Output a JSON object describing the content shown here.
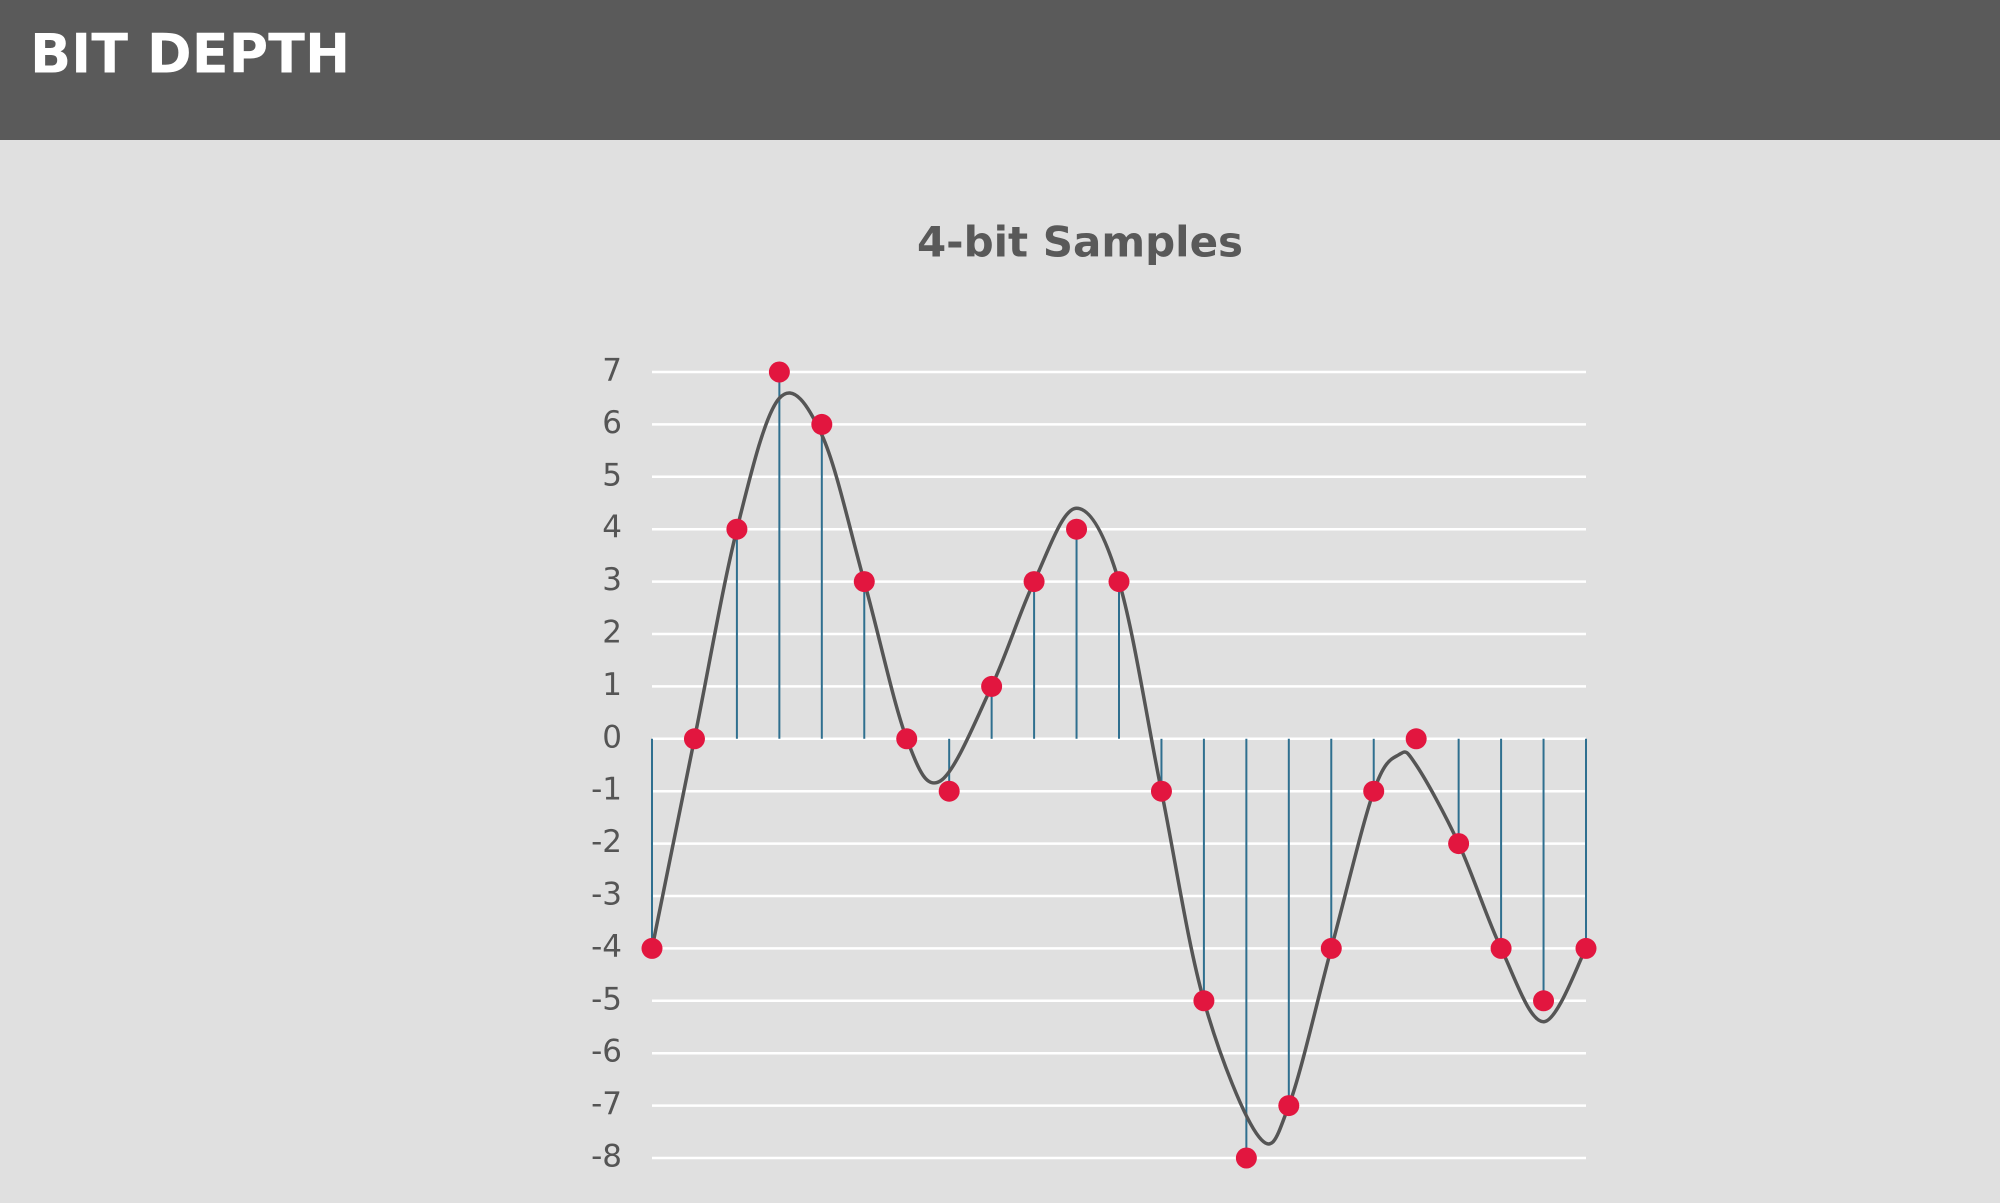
{
  "header": {
    "title": "BIT DEPTH"
  },
  "chart_data": {
    "type": "stem",
    "title": "4-bit Samples",
    "x": [
      0,
      1,
      2,
      3,
      4,
      5,
      6,
      7,
      8,
      9,
      10,
      11,
      12,
      13,
      14,
      15,
      16,
      17,
      18,
      19,
      20,
      21,
      22
    ],
    "values": [
      -4,
      0,
      4,
      7,
      6,
      3,
      0,
      -1,
      1,
      3,
      4,
      3,
      -1,
      -5,
      -8,
      -7,
      -4,
      -1,
      0,
      -2,
      -4,
      -5,
      -4
    ],
    "color": "#e2163f",
    "stem_color": "#2f6f8f",
    "analog_signal": {
      "x": [
        0,
        1,
        2,
        3,
        4,
        5,
        6,
        6.8,
        8,
        9,
        10,
        11,
        12,
        13,
        14.3,
        15,
        16,
        17,
        17.6,
        18,
        19,
        20,
        21,
        22
      ],
      "values": [
        -4,
        0,
        4,
        6.5,
        5.8,
        3,
        0,
        -0.8,
        1,
        3,
        4.4,
        3,
        -1,
        -5,
        -7.6,
        -7,
        -4,
        -1,
        -0.3,
        -0.5,
        -2,
        -4,
        -5.4,
        -4
      ],
      "color": "#555555"
    },
    "xlim": [
      0,
      22
    ],
    "ylim": [
      -8,
      7
    ],
    "yticks": [
      -8,
      -7,
      -6,
      -5,
      -4,
      -3,
      -2,
      -1,
      0,
      1,
      2,
      3,
      4,
      5,
      6,
      7
    ],
    "grid": true
  }
}
